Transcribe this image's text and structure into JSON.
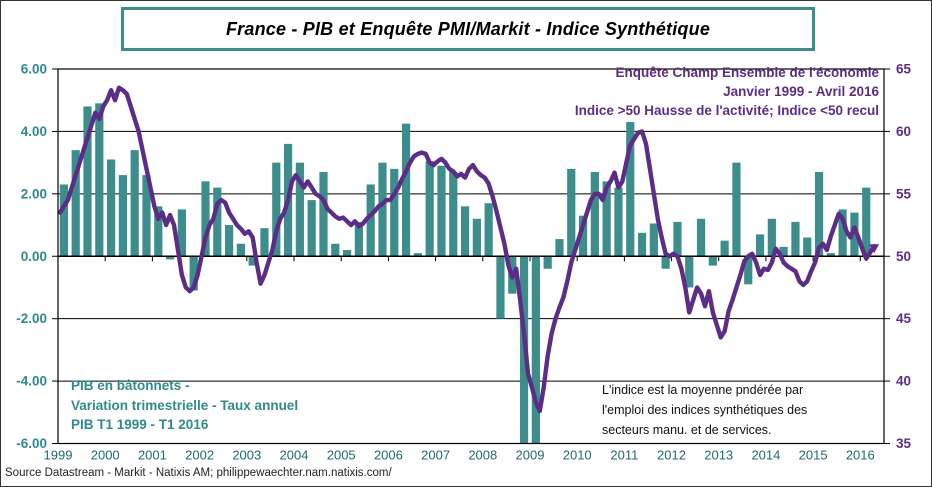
{
  "figure": {
    "title": "France - PIB et Enquête PMI/Markit - Indice Synthétique",
    "source_line": "Source Datastream - Markit - Natixis AM; philippewaechter.nam.natixis.com/",
    "annotations": {
      "purple_lines": [
        "Enquête Champ Ensemble de l'économie",
        "Janvier 1999 - Avril 2016",
        "Indice  >50 Hausse de l'activité;  Indice  <50 recul"
      ],
      "teal_lines": [
        "PIB en bâtonnets -",
        "Variation trimestrielle  - Taux annuel",
        "PIB T1 1999 - T1 2016"
      ],
      "black_lines": [
        "L'indice  est la moyenne  pndérée par",
        "l'emploi   des indices  synthétiques des",
        "secteurs manu.  et de services."
      ]
    },
    "colors": {
      "bar_teal": "#3E8D8D",
      "text_teal": "#2F8A8A",
      "line_purple": "#5C2D87",
      "grid_black": "#000000",
      "year_label": "#1F6B6B"
    }
  },
  "chart_data": {
    "type": "combo_bar_line",
    "title": "France - PIB et Enquête PMI/Markit - Indice Synthétique",
    "bar_series": {
      "name": "PIB - Variation trimestrielle - Taux annuel",
      "axis": "left",
      "start_quarter": "1999-T1",
      "end_quarter": "2016-T1",
      "values": [
        2.3,
        3.4,
        4.8,
        4.9,
        3.1,
        2.6,
        3.4,
        2.6,
        1.6,
        -0.1,
        1.5,
        -1.1,
        2.4,
        2.2,
        1.0,
        0.4,
        -0.3,
        0.9,
        3.0,
        3.6,
        3.0,
        1.8,
        2.7,
        0.4,
        0.2,
        1.1,
        2.3,
        3.0,
        2.8,
        4.25,
        0.1,
        3.05,
        2.9,
        2.7,
        1.6,
        1.2,
        1.7,
        -2.0,
        -1.2,
        -6.2,
        -6.2,
        -0.4,
        0.55,
        2.8,
        1.3,
        2.7,
        2.4,
        2.2,
        4.3,
        0.75,
        1.05,
        -0.4,
        1.1,
        -1.0,
        1.2,
        -0.3,
        0.5,
        3.0,
        -0.9,
        0.7,
        1.2,
        0.3,
        1.1,
        0.6,
        2.7,
        0.1,
        1.5,
        1.4,
        2.2
      ]
    },
    "line_series": {
      "name": "Enquête PMI/Markit - Indice synthétique ensemble de l'économie",
      "axis": "right",
      "start_month": "1999-01",
      "end_month": "2016-04",
      "values": [
        53.5,
        54.0,
        54.5,
        55.5,
        56.5,
        57.5,
        58.5,
        59.5,
        60.5,
        61.5,
        61.0,
        62.0,
        62.5,
        63.3,
        62.5,
        63.5,
        63.3,
        63.0,
        62.0,
        61.0,
        60.0,
        58.5,
        57.0,
        55.5,
        54.0,
        53.0,
        53.5,
        52.5,
        53.3,
        52.5,
        50.5,
        48.5,
        47.5,
        47.2,
        47.5,
        48.5,
        50.0,
        51.5,
        52.5,
        53.0,
        54.2,
        54.5,
        54.3,
        53.5,
        53.0,
        52.5,
        52.2,
        51.8,
        52.0,
        51.5,
        49.5,
        47.8,
        48.5,
        49.5,
        50.5,
        52.0,
        53.0,
        53.5,
        54.5,
        56.0,
        56.5,
        56.0,
        55.5,
        56.0,
        55.5,
        55.0,
        54.8,
        54.5,
        53.8,
        53.5,
        53.2,
        53.0,
        53.1,
        52.8,
        52.5,
        52.8,
        52.4,
        52.6,
        53.0,
        53.3,
        53.6,
        54.0,
        54.2,
        54.5,
        54.5,
        55.0,
        55.5,
        56.2,
        56.8,
        57.5,
        58.0,
        58.2,
        58.3,
        58.2,
        57.5,
        57.3,
        57.6,
        57.8,
        57.5,
        57.0,
        56.8,
        56.4,
        56.6,
        56.3,
        57.0,
        57.3,
        56.8,
        56.5,
        56.3,
        55.8,
        54.8,
        53.6,
        52.3,
        51.0,
        49.3,
        48.3,
        49.0,
        46.5,
        43.8,
        40.6,
        39.5,
        38.3,
        37.6,
        39.5,
        42.0,
        43.8,
        45.0,
        45.9,
        46.7,
        48.0,
        49.5,
        50.5,
        51.5,
        52.5,
        53.5,
        54.5,
        55.0,
        55.0,
        54.5,
        55.5,
        56.0,
        56.7,
        55.5,
        56.0,
        57.5,
        58.9,
        59.4,
        59.9,
        60.0,
        59.0,
        57.0,
        55.0,
        53.0,
        51.5,
        50.2,
        50.0,
        50.2,
        50.0,
        49.0,
        47.5,
        45.5,
        46.5,
        47.5,
        47.0,
        46.0,
        47.2,
        45.5,
        44.5,
        43.5,
        44.0,
        45.6,
        46.5,
        47.5,
        48.5,
        49.6,
        50.0,
        50.2,
        49.5,
        48.5,
        49.0,
        48.9,
        49.5,
        50.6,
        50.2,
        49.5,
        49.2,
        49.0,
        48.8,
        48.0,
        47.7,
        48.0,
        48.8,
        49.5,
        50.7,
        51.0,
        50.5,
        51.6,
        52.5,
        53.4,
        53.0,
        52.0,
        51.5,
        52.3,
        51.5,
        50.6,
        49.8,
        50.3,
        50.8
      ]
    },
    "left_axis": {
      "min": -6,
      "max": 6,
      "step": 2,
      "tick_labels": [
        "6.00",
        "4.00",
        "2.00",
        "0.00",
        "-2.00",
        "-4.00",
        "-6.00"
      ]
    },
    "right_axis": {
      "min": 35,
      "max": 65,
      "step": 5,
      "tick_labels": [
        "65",
        "60",
        "55",
        "50",
        "45",
        "40",
        "35"
      ]
    },
    "x_years": [
      "1999",
      "2000",
      "2001",
      "2002",
      "2003",
      "2004",
      "2005",
      "2006",
      "2007",
      "2008",
      "2009",
      "2010",
      "2011",
      "2012",
      "2013",
      "2014",
      "2015",
      "2016"
    ],
    "grid": true,
    "legend_position": "none"
  }
}
